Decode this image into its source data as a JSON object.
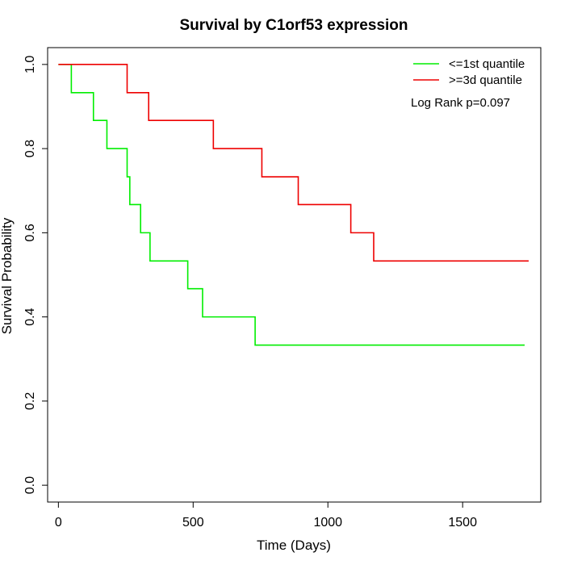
{
  "chart_data": {
    "type": "line",
    "title": "Survival by C1orf53 expression",
    "xlabel": "Time (Days)",
    "ylabel": "Survival Probability",
    "xlim": [
      -40,
      1790
    ],
    "ylim": [
      -0.04,
      1.04
    ],
    "x_ticks": [
      {
        "value": 0,
        "label": "0"
      },
      {
        "value": 500,
        "label": "500"
      },
      {
        "value": 1000,
        "label": "1000"
      },
      {
        "value": 1500,
        "label": "1500"
      }
    ],
    "y_ticks": [
      {
        "value": 0.0,
        "label": "0.0"
      },
      {
        "value": 0.2,
        "label": "0.2"
      },
      {
        "value": 0.4,
        "label": "0.4"
      },
      {
        "value": 0.6,
        "label": "0.6"
      },
      {
        "value": 0.8,
        "label": "0.8"
      },
      {
        "value": 1.0,
        "label": "1.0"
      }
    ],
    "grid": false,
    "legend_position": "top-right",
    "annotation": "Log Rank p=0.097",
    "series": [
      {
        "name": "<=1st quantile",
        "color": "#00ee00",
        "step": true,
        "points": [
          [
            0,
            1.0
          ],
          [
            48,
            0.933
          ],
          [
            130,
            0.867
          ],
          [
            180,
            0.8
          ],
          [
            255,
            0.733
          ],
          [
            265,
            0.667
          ],
          [
            305,
            0.6
          ],
          [
            340,
            0.533
          ],
          [
            480,
            0.467
          ],
          [
            535,
            0.4
          ],
          [
            730,
            0.333
          ],
          [
            1730,
            0.333
          ]
        ]
      },
      {
        "name": ">=3d quantile",
        "color": "#ee0000",
        "step": true,
        "points": [
          [
            0,
            1.0
          ],
          [
            255,
            0.933
          ],
          [
            335,
            0.867
          ],
          [
            575,
            0.8
          ],
          [
            755,
            0.733
          ],
          [
            890,
            0.667
          ],
          [
            1085,
            0.6
          ],
          [
            1170,
            0.533
          ],
          [
            1745,
            0.533
          ]
        ]
      }
    ]
  }
}
